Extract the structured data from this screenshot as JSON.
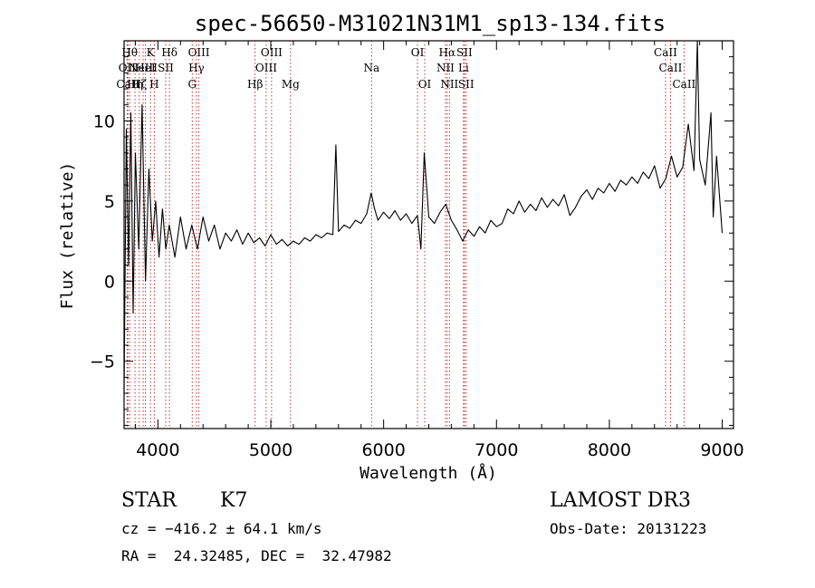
{
  "chart_data": {
    "type": "line",
    "title": "spec-56650-M31021N31M1_sp13-134.fits",
    "xlabel": "Wavelength (Å)",
    "ylabel": "Flux (relative)",
    "xlim": [
      3700,
      9100
    ],
    "ylim": [
      -9.2,
      15
    ],
    "x_ticks": [
      4000,
      5000,
      6000,
      7000,
      8000,
      9000
    ],
    "x_tick_labels": [
      "4000",
      "5000",
      "6000",
      "7000",
      "8000",
      "9000"
    ],
    "y_ticks": [
      -5,
      0,
      5,
      10
    ],
    "y_tick_labels": [
      "−5",
      "0",
      "5",
      "10"
    ],
    "grid": false,
    "line_color": "#000000",
    "marker_color": "#b22222",
    "series": [
      {
        "x": [
          3700,
          3720,
          3740,
          3760,
          3780,
          3800,
          3830,
          3860,
          3890,
          3920,
          3950,
          3980,
          4010,
          4040,
          4070,
          4100,
          4150,
          4200,
          4250,
          4300,
          4350,
          4400,
          4450,
          4500,
          4550,
          4600,
          4650,
          4700,
          4750,
          4800,
          4850,
          4900,
          4950,
          5000,
          5050,
          5100,
          5150,
          5200,
          5250,
          5300,
          5350,
          5400,
          5450,
          5500,
          5550,
          5577,
          5600,
          5650,
          5700,
          5750,
          5800,
          5850,
          5890,
          5920,
          5950,
          6000,
          6050,
          6100,
          6150,
          6200,
          6250,
          6300,
          6330,
          6360,
          6400,
          6450,
          6500,
          6550,
          6600,
          6650,
          6700,
          6750,
          6800,
          6850,
          6900,
          6950,
          7000,
          7050,
          7100,
          7150,
          7200,
          7250,
          7300,
          7350,
          7400,
          7450,
          7500,
          7550,
          7600,
          7650,
          7700,
          7750,
          7800,
          7850,
          7900,
          7950,
          8000,
          8050,
          8100,
          8150,
          8200,
          8250,
          8300,
          8350,
          8400,
          8450,
          8500,
          8550,
          8600,
          8650,
          8700,
          8750,
          8780,
          8800,
          8850,
          8900,
          8920,
          8950,
          9000
        ],
        "y": [
          -7,
          9.5,
          1,
          10.5,
          -2,
          8,
          2,
          11,
          0,
          7,
          2.5,
          5,
          1.5,
          4.5,
          2,
          3.5,
          1.5,
          4,
          2,
          3.5,
          2,
          4,
          2.5,
          3.5,
          2,
          3,
          2.5,
          3.2,
          2.3,
          3,
          2.4,
          2.7,
          2.2,
          2.9,
          2.3,
          2.6,
          2.2,
          2.5,
          2.3,
          2.7,
          2.5,
          2.9,
          2.7,
          3,
          2.9,
          8.5,
          3.1,
          3.5,
          3.3,
          3.8,
          3.6,
          4.2,
          5.5,
          4.5,
          3.8,
          4.3,
          3.9,
          4.4,
          3.8,
          4.2,
          3.6,
          4.1,
          2,
          8,
          4,
          3.6,
          4.3,
          4.8,
          3.8,
          3.2,
          2.5,
          3.2,
          2.8,
          3.4,
          3,
          3.8,
          3.4,
          3.6,
          4.5,
          4.2,
          5,
          4.3,
          4.8,
          4.4,
          5.2,
          4.6,
          5.1,
          4.7,
          5.4,
          4.1,
          4.6,
          5.3,
          5.7,
          5.1,
          5.8,
          5.5,
          6.1,
          5.6,
          6.3,
          6,
          6.5,
          6.1,
          6.8,
          6.4,
          7.2,
          5.8,
          6.4,
          7.8,
          6.5,
          7.1,
          9.8,
          6.9,
          15,
          7.6,
          6,
          10.5,
          4,
          7.8,
          3
        ]
      }
    ],
    "line_markers": [
      {
        "wl": 3727,
        "label": "OII",
        "row": 2
      },
      {
        "wl": 3734,
        "label": "CaII",
        "row": 3
      },
      {
        "wl": 3750,
        "label": "Hθ",
        "row": 1
      },
      {
        "wl": 3797,
        "label": "Hη",
        "row": 3
      },
      {
        "wl": 3835,
        "label": "Hζ",
        "row": 3
      },
      {
        "wl": 3869,
        "label": "NeIII",
        "row": 2
      },
      {
        "wl": 3889,
        "label": "HeI",
        "row": 2
      },
      {
        "wl": 3934,
        "label": "K",
        "row": 1
      },
      {
        "wl": 3968,
        "label": "H",
        "row": 3
      },
      {
        "wl": 4069,
        "label": "SII",
        "row": 2
      },
      {
        "wl": 4102,
        "label": "Hδ",
        "row": 1
      },
      {
        "wl": 4304,
        "label": "G",
        "row": 3
      },
      {
        "wl": 4341,
        "label": "Hγ",
        "row": 2
      },
      {
        "wl": 4363,
        "label": "OIII",
        "row": 1
      },
      {
        "wl": 4861,
        "label": "Hβ",
        "row": 3
      },
      {
        "wl": 4959,
        "label": "OIII",
        "row": 2
      },
      {
        "wl": 5007,
        "label": "OIII",
        "row": 1
      },
      {
        "wl": 5175,
        "label": "Mg",
        "row": 3
      },
      {
        "wl": 5893,
        "label": "Na",
        "row": 2
      },
      {
        "wl": 6300,
        "label": "OI",
        "row": 1
      },
      {
        "wl": 6364,
        "label": "OI",
        "row": 3
      },
      {
        "wl": 6548,
        "label": "NII",
        "row": 2
      },
      {
        "wl": 6563,
        "label": "Hα",
        "row": 1
      },
      {
        "wl": 6583,
        "label": "NII",
        "row": 3
      },
      {
        "wl": 6708,
        "label": "Li",
        "row": 2
      },
      {
        "wl": 6716,
        "label": "SII",
        "row": 1
      },
      {
        "wl": 6731,
        "label": "SII",
        "row": 3
      },
      {
        "wl": 8498,
        "label": "CaII",
        "row": 1
      },
      {
        "wl": 8542,
        "label": "CaII",
        "row": 2
      },
      {
        "wl": 8662,
        "label": "CaII",
        "row": 3
      }
    ]
  },
  "info": {
    "class": "STAR",
    "subclass": "K7",
    "survey": "LAMOST DR3",
    "cz": "cz = −416.2 ± 64.1 km/s",
    "obs_date": "Obs-Date: 20131223",
    "coords": "RA =  24.32485, DEC =  32.47982"
  }
}
